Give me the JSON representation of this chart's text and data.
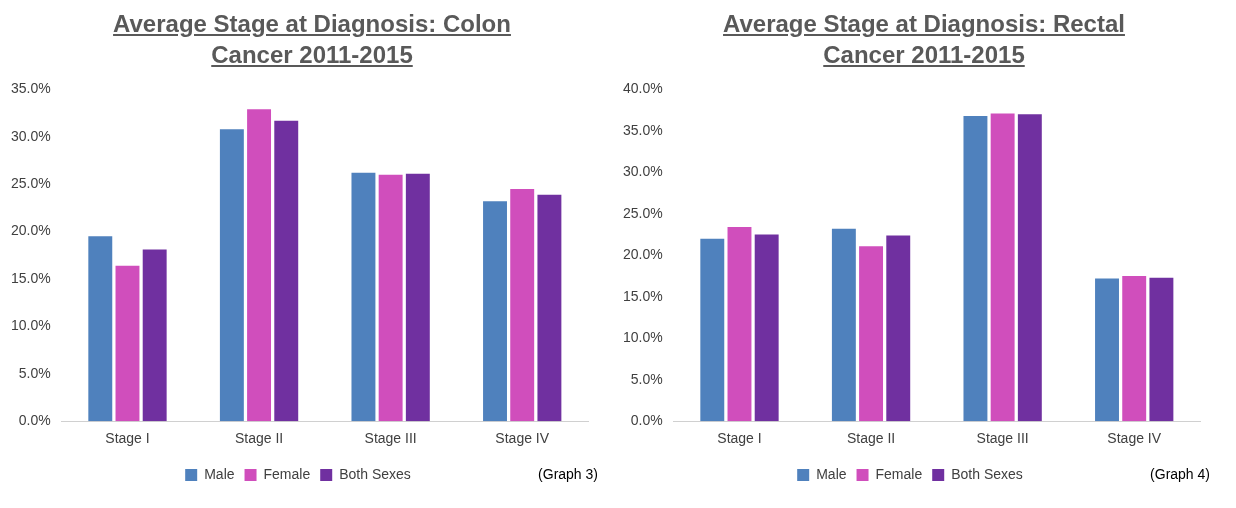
{
  "chart_data": [
    {
      "type": "bar",
      "title": "Average Stage at Diagnosis: Colon Cancer 2011-2015",
      "categories": [
        "Stage I",
        "Stage II",
        "Stage III",
        "Stage IV"
      ],
      "series": [
        {
          "name": "Male",
          "color": "#4f81bd",
          "values": [
            19.5,
            30.8,
            26.2,
            23.2
          ]
        },
        {
          "name": "Female",
          "color": "#d04ebc",
          "values": [
            16.4,
            32.9,
            26.0,
            24.5
          ]
        },
        {
          "name": "Both Sexes",
          "color": "#7030a0",
          "values": [
            18.1,
            31.7,
            26.1,
            23.9
          ]
        }
      ],
      "ylim": [
        0,
        35
      ],
      "yticks": [
        {
          "value": 0,
          "label": "0.0%"
        },
        {
          "value": 5,
          "label": "5.0%"
        },
        {
          "value": 10,
          "label": "10.0%"
        },
        {
          "value": 15,
          "label": "15.0%"
        },
        {
          "value": 20,
          "label": "20.0%"
        },
        {
          "value": 25,
          "label": "25.0%"
        },
        {
          "value": 30,
          "label": "30.0%"
        },
        {
          "value": 35,
          "label": "35.0%"
        }
      ],
      "legend": "bottom",
      "annotations": [
        "(Graph 3)"
      ]
    },
    {
      "type": "bar",
      "title": "Average Stage at Diagnosis: Rectal Cancer 2011-2015",
      "categories": [
        "Stage I",
        "Stage II",
        "Stage III",
        "Stage IV"
      ],
      "series": [
        {
          "name": "Male",
          "color": "#4f81bd",
          "values": [
            22.0,
            23.2,
            36.8,
            17.2
          ]
        },
        {
          "name": "Female",
          "color": "#d04ebc",
          "values": [
            23.4,
            21.1,
            37.1,
            17.5
          ]
        },
        {
          "name": "Both Sexes",
          "color": "#7030a0",
          "values": [
            22.5,
            22.4,
            37.0,
            17.3
          ]
        }
      ],
      "ylim": [
        0,
        40
      ],
      "yticks": [
        {
          "value": 0,
          "label": "0.0%"
        },
        {
          "value": 5,
          "label": "5.0%"
        },
        {
          "value": 10,
          "label": "10.0%"
        },
        {
          "value": 15,
          "label": "15.0%"
        },
        {
          "value": 20,
          "label": "20.0%"
        },
        {
          "value": 25,
          "label": "25.0%"
        },
        {
          "value": 30,
          "label": "30.0%"
        },
        {
          "value": 35,
          "label": "35.0%"
        },
        {
          "value": 40,
          "label": "40.0%"
        }
      ],
      "legend": "bottom",
      "annotations": [
        "(Graph 4)"
      ]
    }
  ]
}
